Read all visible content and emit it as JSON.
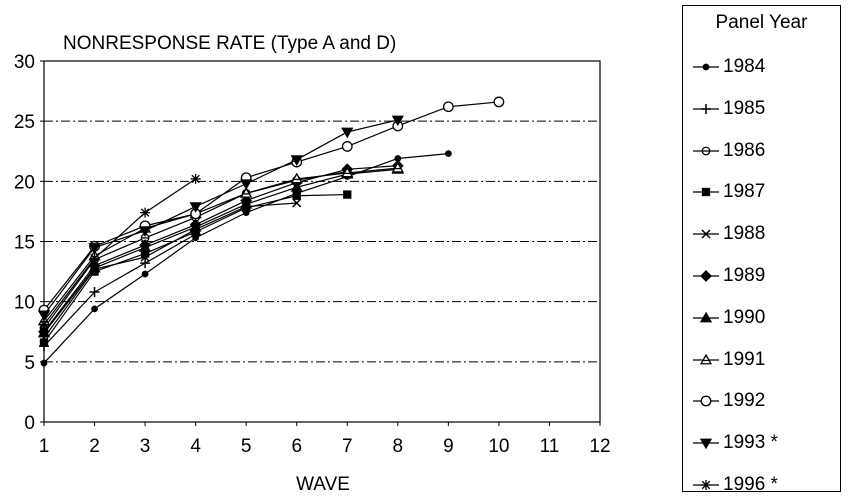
{
  "chart_data": {
    "type": "line",
    "title": "NONRESPONSE RATE (Type A and D)",
    "xlabel": "WAVE",
    "ylabel": "",
    "xlim": [
      1,
      12
    ],
    "ylim": [
      0,
      30
    ],
    "x_ticks": [
      "1",
      "2",
      "3",
      "4",
      "5",
      "6",
      "7",
      "8",
      "9",
      "10",
      "11",
      "12"
    ],
    "y_ticks": [
      "0",
      "5",
      "10",
      "15",
      "20",
      "25",
      "30"
    ],
    "grid": "horizontal dash-dot lines at each y tick",
    "legend": {
      "title": "Panel Year",
      "placement": "right"
    },
    "series": [
      {
        "name": "1984",
        "marker": "dot",
        "x": [
          1,
          2,
          3,
          4,
          5,
          6,
          7,
          8,
          9
        ],
        "values": [
          4.9,
          9.4,
          12.3,
          15.3,
          17.4,
          19.0,
          20.4,
          21.9,
          22.3
        ]
      },
      {
        "name": "1985",
        "marker": "plus",
        "x": [
          1,
          2,
          3,
          4
        ],
        "values": [
          6.3,
          10.8,
          13.2,
          15.6
        ]
      },
      {
        "name": "1986",
        "marker": "circle-line",
        "x": [
          1,
          2,
          3,
          4,
          5,
          6,
          7
        ],
        "values": [
          7.8,
          13.5,
          15.3,
          17.0,
          19.0,
          20.1,
          20.8
        ]
      },
      {
        "name": "1987",
        "marker": "square",
        "x": [
          1,
          2,
          3,
          4,
          5,
          6,
          7
        ],
        "values": [
          6.6,
          12.5,
          14.0,
          15.8,
          17.8,
          18.8,
          18.9
        ]
      },
      {
        "name": "1988",
        "marker": "x",
        "x": [
          1,
          2,
          3,
          4,
          5,
          6
        ],
        "values": [
          7.0,
          12.7,
          13.7,
          16.0,
          17.9,
          18.2
        ]
      },
      {
        "name": "1989",
        "marker": "diamond",
        "x": [
          1,
          2,
          3,
          4,
          5,
          6,
          7,
          8
        ],
        "values": [
          7.5,
          13.0,
          14.7,
          16.4,
          18.4,
          19.9,
          21.0,
          21.3
        ]
      },
      {
        "name": "1990",
        "marker": "triangle",
        "x": [
          1,
          2,
          3,
          4,
          5,
          6,
          7,
          8
        ],
        "values": [
          7.4,
          12.8,
          14.5,
          16.2,
          18.1,
          19.5,
          20.6,
          21.0
        ]
      },
      {
        "name": "1991",
        "marker": "triangle-open",
        "x": [
          1,
          2,
          3,
          4,
          5,
          6,
          7,
          8
        ],
        "values": [
          8.4,
          13.8,
          16.1,
          17.3,
          19.0,
          20.2,
          20.7,
          21.1
        ]
      },
      {
        "name": "1992",
        "marker": "circle-open",
        "x": [
          1,
          2,
          3,
          4,
          5,
          6,
          7,
          8,
          9,
          10
        ],
        "values": [
          9.3,
          14.6,
          16.3,
          17.3,
          20.3,
          21.6,
          22.9,
          24.6,
          26.2,
          26.6
        ]
      },
      {
        "name": "1993 *",
        "marker": "triangle-down",
        "x": [
          1,
          2,
          3,
          4,
          5,
          6,
          7,
          8
        ],
        "values": [
          8.9,
          14.5,
          15.9,
          17.9,
          19.8,
          21.8,
          24.1,
          25.1
        ]
      },
      {
        "name": "1996 *",
        "marker": "star",
        "x": [
          1,
          2,
          3,
          4
        ],
        "values": [
          8.1,
          13.6,
          17.4,
          20.2
        ]
      }
    ]
  }
}
